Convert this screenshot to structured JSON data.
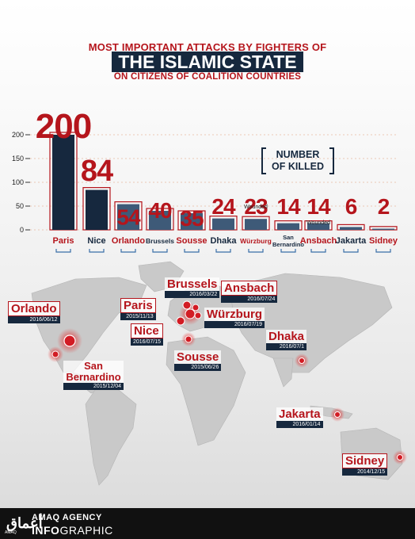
{
  "header": {
    "line1": "MOST IMPORTANT ATTACKS BY FIGHTERS OF",
    "line2": "THE ISLAMIC STATE",
    "line3": "ON CITIZENS OF COALITION COUNTRIES"
  },
  "legend": {
    "line1": "NUMBER",
    "line2": "OF KILLED"
  },
  "colors": {
    "red": "#b5151c",
    "navy": "#16283e",
    "steel": "#3e5a78"
  },
  "chart_data": {
    "type": "bar",
    "categories": [
      "Paris",
      "Nice",
      "Orlando",
      "Brussels",
      "Sousse",
      "Dhaka",
      "Würzburg",
      "San Bernardino",
      "Ansbach",
      "Jakarta",
      "Sidney"
    ],
    "values": [
      200,
      84,
      54,
      40,
      35,
      24,
      23,
      14,
      14,
      6,
      2
    ],
    "value_labels": [
      "200",
      "84",
      "54",
      "40",
      "35",
      "24",
      "23",
      "14",
      "14",
      "6",
      "2"
    ],
    "annotations": {
      "Würzburg": "Wounded",
      "Ansbach": "Wounded"
    },
    "yticks": [
      0,
      50,
      100,
      150,
      200
    ],
    "ylim": [
      0,
      200
    ],
    "grid": true
  },
  "map": {
    "attacks": [
      {
        "city": "Orlando",
        "date": "2016/06/12"
      },
      {
        "city": "San Bernardino",
        "date": "2015/12/04"
      },
      {
        "city": "Paris",
        "date": "2015/11/13"
      },
      {
        "city": "Brussels",
        "date": "2016/03/22"
      },
      {
        "city": "Ansbach",
        "date": "2016/07/24"
      },
      {
        "city": "Würzburg",
        "date": "2016/07/19"
      },
      {
        "city": "Nice",
        "date": "2016/07/15"
      },
      {
        "city": "Sousse",
        "date": "2015/06/26"
      },
      {
        "city": "Dhaka",
        "date": "2016/07/1"
      },
      {
        "city": "Jakarta",
        "date": "2016/01/14"
      },
      {
        "city": "Sidney",
        "date": "2014/12/15"
      }
    ]
  },
  "footer": {
    "logo_text": "أعماق",
    "logo_sub": "AMAQ",
    "agency": "AMAQ AGENCY",
    "info": "INFO",
    "graphic": "GRAPHIC"
  }
}
